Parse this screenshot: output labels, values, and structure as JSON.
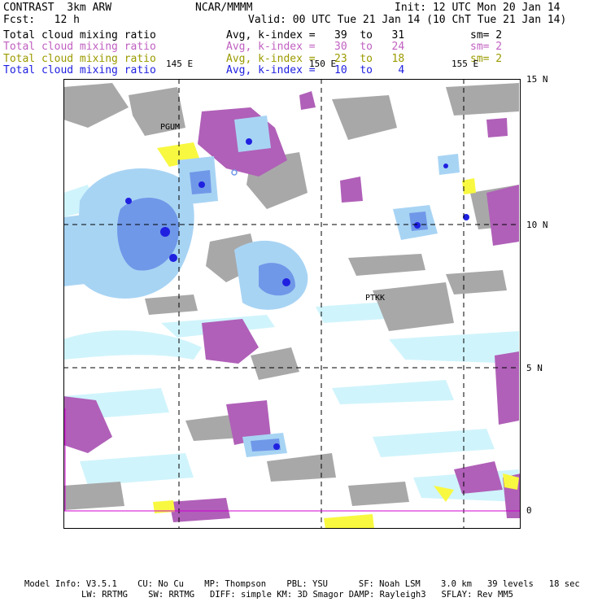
{
  "header": {
    "model": "CONTRAST  3km ARW",
    "org": "NCAR/MMMM",
    "init": "Init: 12 UTC Mon 20 Jan 14",
    "fcst": "Fcst:   12 h",
    "valid": "Valid: 00 UTC Tue 21 Jan 14 (10 ChT Tue 21 Jan 14)"
  },
  "fields": [
    {
      "name": "Total cloud mixing ratio",
      "range": "Avg, k-index =   39  to   31",
      "sm": "sm= 2",
      "color": "#000000"
    },
    {
      "name": "Total cloud mixing ratio",
      "range": "Avg, k-index =   30  to   24",
      "sm": "sm= 2",
      "color": "#c060c0"
    },
    {
      "name": "Total cloud mixing ratio",
      "range": "Avg, k-index =   23  to   18",
      "sm": "sm= 2",
      "color": "#9a9a00"
    },
    {
      "name": "Total cloud mixing ratio",
      "range": "Avg, k-index =   10  to    4",
      "sm": "",
      "color": "#2020e0"
    }
  ],
  "map": {
    "lon_labels": [
      "145 E",
      "150 E",
      "155 E"
    ],
    "lat_labels": [
      "15 N",
      "10 N",
      "5 N",
      "0"
    ],
    "stations": [
      "PGUM",
      "PTKK"
    ],
    "colors": {
      "gray": "#a8a8a8",
      "purple": "#b060b8",
      "yellow": "#f8f840",
      "lightcyan": "#d0f4fc",
      "lightblue": "#a8d4f4",
      "blue": "#7098e8",
      "darkblue": "#2020e0"
    }
  },
  "footer": {
    "line1": "Model Info: V3.5.1    CU: No Cu    MP: Thompson    PBL: YSU      SF: Noah LSM    3.0 km   39 levels   18 sec",
    "line2": "LW: RRTMG    SW: RRTMG   DIFF: simple KM: 3D Smagor DAMP: Rayleigh3   SFLAY: Rev MM5"
  }
}
